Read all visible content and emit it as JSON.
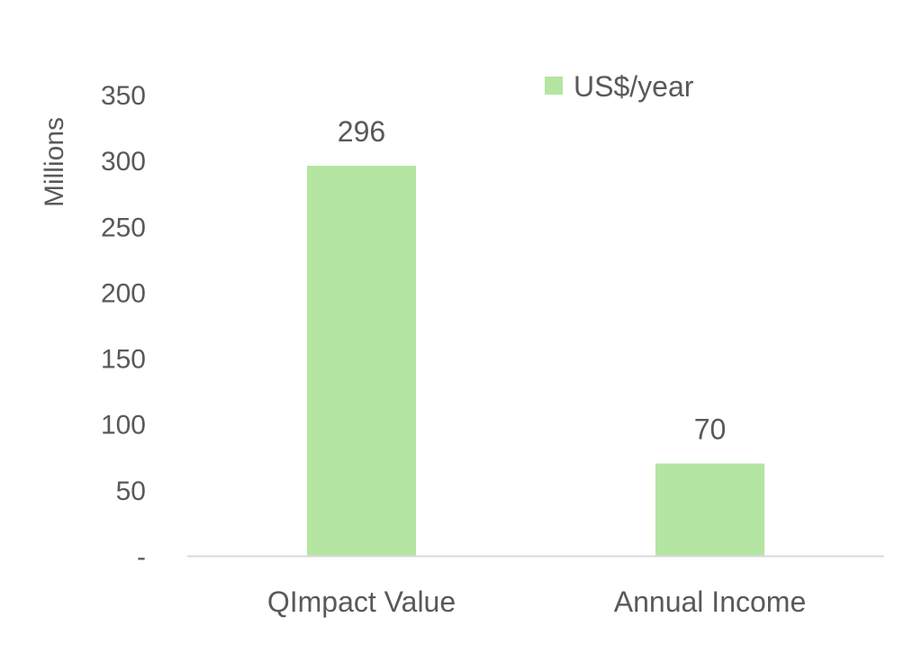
{
  "chart_data": {
    "type": "bar",
    "categories": [
      "QImpact Value",
      "Annual Income"
    ],
    "series": [
      {
        "name": "US$/year",
        "values": [
          296,
          70
        ],
        "color": "#b4e5a2"
      }
    ],
    "ylabel": "Millions",
    "xlabel": "",
    "ylim": [
      0,
      350
    ],
    "ytick_values": [
      0,
      50,
      100,
      150,
      200,
      250,
      300,
      350
    ],
    "ytick_labels": [
      "-",
      "50",
      "100",
      "150",
      "200",
      "250",
      "300",
      "350"
    ],
    "data_labels": [
      "296",
      "70"
    ],
    "legend_position": "top",
    "grid": false,
    "axis_color": "#d9d9d9"
  }
}
